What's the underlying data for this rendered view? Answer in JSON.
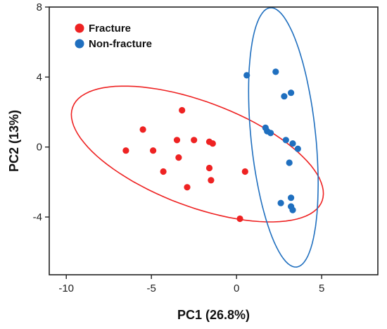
{
  "chart_data": {
    "type": "scatter",
    "title": "",
    "xlabel": "PC1 (26.8%)",
    "ylabel": "PC2 (13%)",
    "xlim": [
      -11,
      8.3
    ],
    "ylim": [
      -7.3,
      8
    ],
    "xticks": [
      -10,
      -5,
      0,
      5
    ],
    "yticks": [
      8,
      4,
      0,
      -4
    ],
    "grid": false,
    "legend_position": "top-left",
    "series": [
      {
        "name": "Fracture",
        "color": "#ee2222",
        "points": [
          [
            -6.5,
            -0.2
          ],
          [
            -5.5,
            1.0
          ],
          [
            -4.9,
            -0.2
          ],
          [
            -4.3,
            -1.4
          ],
          [
            -3.2,
            2.1
          ],
          [
            -3.5,
            0.4
          ],
          [
            -3.4,
            -0.6
          ],
          [
            -2.9,
            -2.3
          ],
          [
            -2.5,
            0.4
          ],
          [
            -1.6,
            0.3
          ],
          [
            -1.4,
            0.2
          ],
          [
            -1.6,
            -1.2
          ],
          [
            -1.5,
            -1.9
          ],
          [
            0.5,
            -1.4
          ],
          [
            0.2,
            -4.1
          ]
        ],
        "ellipse": {
          "cx": -2.3,
          "cy": -0.4,
          "rx": 7.8,
          "ry": 3.0,
          "angle": -20
        }
      },
      {
        "name": "Non-fracture",
        "color": "#1f6fbf",
        "points": [
          [
            0.6,
            4.1
          ],
          [
            2.3,
            4.3
          ],
          [
            2.8,
            2.9
          ],
          [
            3.2,
            3.1
          ],
          [
            1.7,
            1.1
          ],
          [
            1.8,
            0.9
          ],
          [
            2.0,
            0.8
          ],
          [
            2.9,
            0.4
          ],
          [
            3.3,
            0.2
          ],
          [
            3.6,
            -0.1
          ],
          [
            3.1,
            -0.9
          ],
          [
            3.2,
            -2.9
          ],
          [
            2.6,
            -3.2
          ],
          [
            3.2,
            -3.4
          ],
          [
            3.3,
            -3.6
          ]
        ],
        "ellipse": {
          "cx": 2.75,
          "cy": 0.55,
          "rx": 7.45,
          "ry": 1.9,
          "angle": -84
        }
      }
    ]
  }
}
